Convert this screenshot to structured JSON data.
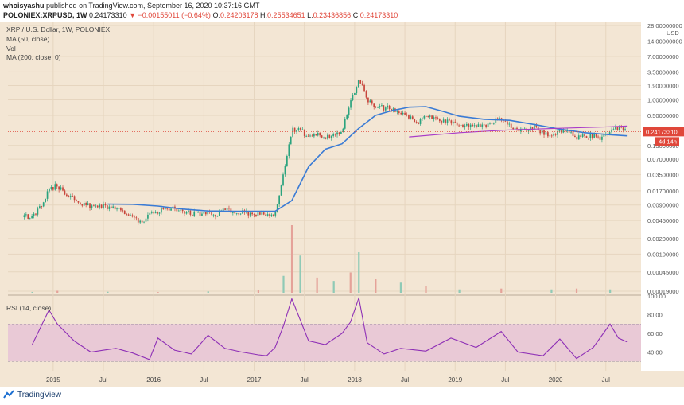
{
  "header": {
    "author": "whoisyashu",
    "published_text": "published on TradingView.com, September 16, 2020 10:37:16 GMT",
    "symbol": "POLONIEX:XRPUSD, 1W",
    "last": "0.24173310",
    "change": "▼ −0.00155011 (−0.64%)",
    "o_label": "O:",
    "o_value": "0.24203178",
    "h_label": "H:",
    "h_value": "0.25534651",
    "l_label": "L:",
    "l_value": "0.23436856",
    "c_label": "C:",
    "c_value": "0.24173310"
  },
  "legend": {
    "title": "XRP / U.S. Dollar, 1W, POLONIEX",
    "ma50": "MA (50, close)",
    "vol": "Vol",
    "ma200": "MA (200, close, 0)",
    "rsi": "RSI (14, close)"
  },
  "price_badge": "0.24173310",
  "countdown_badge": "4d 14h",
  "footer": {
    "brand": "TradingView"
  },
  "colors": {
    "background": "#f3e6d4",
    "up": "#2aa37e",
    "down": "#c7453b",
    "ma50": "#3a7bd5",
    "ma200": "#a93cc8",
    "rsi": "#8e2fb6",
    "rsi_band": "#e9c9d6",
    "price_badge": "#e0473a"
  },
  "chart_data": [
    {
      "type": "candlestick",
      "scale": "log",
      "currency_label": "USD",
      "y_ticks": [
        "28.00000000",
        "14.00000000",
        "7.00000000",
        "3.50000000",
        "1.90000000",
        "1.00000000",
        "0.50000000",
        "0.24173310",
        "0.13000000",
        "0.07000000",
        "0.03500000",
        "0.01700000",
        "0.00900000",
        "0.00450000",
        "0.00200000",
        "0.00100000",
        "0.00045000",
        "0.00019000"
      ],
      "x_ticks": [
        "2015",
        "Jul",
        "2016",
        "Jul",
        "2017",
        "Jul",
        "2018",
        "Jul",
        "2019",
        "Jul",
        "2020",
        "Jul"
      ],
      "close_series": {
        "x": [
          "2014-09",
          "2014-10",
          "2014-11",
          "2014-12",
          "2015-01",
          "2015-02",
          "2015-03",
          "2015-04",
          "2015-05",
          "2015-06",
          "2015-07",
          "2015-08",
          "2015-09",
          "2015-10",
          "2015-11",
          "2015-12",
          "2016-01",
          "2016-02",
          "2016-03",
          "2016-04",
          "2016-05",
          "2016-06",
          "2016-07",
          "2016-08",
          "2016-09",
          "2016-10",
          "2016-11",
          "2016-12",
          "2017-01",
          "2017-02",
          "2017-03",
          "2017-04",
          "2017-05",
          "2017-06",
          "2017-07",
          "2017-08",
          "2017-09",
          "2017-10",
          "2017-11",
          "2017-12",
          "2018-01",
          "2018-02",
          "2018-03",
          "2018-04",
          "2018-05",
          "2018-06",
          "2018-07",
          "2018-08",
          "2018-09",
          "2018-10",
          "2018-11",
          "2018-12",
          "2019-01",
          "2019-02",
          "2019-03",
          "2019-04",
          "2019-05",
          "2019-06",
          "2019-07",
          "2019-08",
          "2019-09",
          "2019-10",
          "2019-11",
          "2019-12",
          "2020-01",
          "2020-02",
          "2020-03",
          "2020-04",
          "2020-05",
          "2020-06",
          "2020-07",
          "2020-08",
          "2020-09"
        ],
        "close": [
          0.0055,
          0.0052,
          0.0085,
          0.018,
          0.022,
          0.014,
          0.012,
          0.0095,
          0.0085,
          0.0088,
          0.0082,
          0.0078,
          0.0065,
          0.0052,
          0.0042,
          0.0058,
          0.0065,
          0.0081,
          0.0075,
          0.0068,
          0.0063,
          0.0058,
          0.0067,
          0.0059,
          0.0074,
          0.0068,
          0.0066,
          0.0062,
          0.0061,
          0.0054,
          0.0063,
          0.035,
          0.26,
          0.27,
          0.18,
          0.22,
          0.19,
          0.21,
          0.25,
          0.85,
          2.6,
          1.05,
          0.75,
          0.7,
          0.69,
          0.52,
          0.47,
          0.35,
          0.53,
          0.45,
          0.38,
          0.37,
          0.31,
          0.31,
          0.31,
          0.3,
          0.39,
          0.44,
          0.31,
          0.26,
          0.26,
          0.29,
          0.23,
          0.19,
          0.23,
          0.24,
          0.18,
          0.2,
          0.2,
          0.18,
          0.24,
          0.29,
          0.24
        ]
      },
      "ma50": {
        "x": [
          "2015-07",
          "2015-10",
          "2016-01",
          "2016-04",
          "2016-07",
          "2016-10",
          "2017-01",
          "2017-03",
          "2017-05",
          "2017-07",
          "2017-09",
          "2017-11",
          "2018-01",
          "2018-03",
          "2018-05",
          "2018-07",
          "2018-09",
          "2018-11",
          "2019-01",
          "2019-04",
          "2019-07",
          "2019-10",
          "2020-01",
          "2020-04",
          "2020-07",
          "2020-09"
        ],
        "value": [
          0.0094,
          0.0093,
          0.0086,
          0.0075,
          0.0069,
          0.0068,
          0.0068,
          0.0068,
          0.011,
          0.05,
          0.11,
          0.14,
          0.28,
          0.5,
          0.62,
          0.72,
          0.74,
          0.6,
          0.48,
          0.42,
          0.4,
          0.33,
          0.27,
          0.23,
          0.21,
          0.2
        ]
      },
      "ma200": {
        "x": [
          "2018-07",
          "2019-01",
          "2019-07",
          "2020-01",
          "2020-07",
          "2020-09"
        ],
        "value": [
          0.19,
          0.23,
          0.26,
          0.28,
          0.3,
          0.31
        ]
      }
    },
    {
      "type": "bar",
      "name": "Vol",
      "categories": [
        "2014-10",
        "2015-01",
        "2015-07",
        "2016-01",
        "2016-07",
        "2017-01",
        "2017-04",
        "2017-05",
        "2017-06",
        "2017-08",
        "2017-10",
        "2017-12",
        "2018-01",
        "2018-03",
        "2018-06",
        "2018-09",
        "2019-01",
        "2019-06",
        "2019-12",
        "2020-03",
        "2020-07"
      ],
      "values": [
        0.5,
        1.2,
        0.6,
        0.4,
        0.8,
        1.5,
        10,
        40,
        22,
        9,
        7,
        12,
        24,
        8,
        6,
        4,
        2,
        2.5,
        2,
        2.5,
        2
      ]
    },
    {
      "type": "line",
      "name": "RSI (14, close)",
      "y_ticks": [
        "100.00",
        "80.00",
        "60.00",
        "40.00"
      ],
      "ylim": [
        20,
        100
      ],
      "band": [
        30,
        70
      ],
      "x": [
        "2014-10",
        "2014-12",
        "2015-01",
        "2015-03",
        "2015-05",
        "2015-08",
        "2015-10",
        "2015-12",
        "2016-01",
        "2016-03",
        "2016-05",
        "2016-07",
        "2016-09",
        "2016-11",
        "2017-01",
        "2017-02",
        "2017-03",
        "2017-04",
        "2017-05",
        "2017-07",
        "2017-09",
        "2017-11",
        "2017-12",
        "2018-01",
        "2018-02",
        "2018-04",
        "2018-06",
        "2018-09",
        "2018-12",
        "2019-03",
        "2019-06",
        "2019-08",
        "2019-11",
        "2020-01",
        "2020-03",
        "2020-05",
        "2020-07",
        "2020-08",
        "2020-09"
      ],
      "values": [
        48,
        85,
        70,
        52,
        40,
        44,
        39,
        32,
        55,
        42,
        38,
        58,
        44,
        40,
        37,
        36,
        45,
        68,
        97,
        52,
        48,
        60,
        72,
        98,
        50,
        38,
        44,
        41,
        55,
        45,
        62,
        40,
        36,
        54,
        33,
        45,
        70,
        55,
        51
      ]
    }
  ]
}
